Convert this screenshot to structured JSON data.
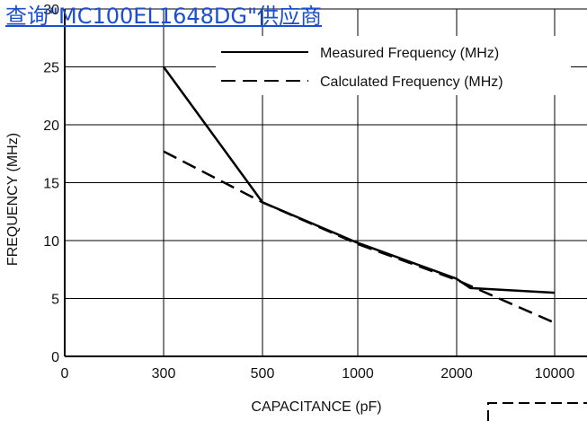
{
  "overlay": {
    "link_text": "查询\"MC100EL1648DG\"供应商"
  },
  "chart_data": {
    "type": "line",
    "title": "",
    "xlabel": "CAPACITANCE (pF)",
    "ylabel": "FREQUENCY (MHz)",
    "categories": [
      "0",
      "300",
      "500",
      "1000",
      "2000",
      "10000"
    ],
    "y_ticks": [
      "0",
      "5",
      "10",
      "15",
      "20",
      "25",
      "30"
    ],
    "ylim": [
      0,
      30
    ],
    "x_scale": "categorical (non-linear spacing as printed)",
    "grid": true,
    "legend_position": "top-right",
    "series": [
      {
        "name": "Measured Frequency (MHz)",
        "style": "solid",
        "color": "#000000",
        "points": [
          [
            300,
            25.0
          ],
          [
            500,
            13.3
          ],
          [
            1000,
            9.8
          ],
          [
            2000,
            6.7
          ],
          [
            2500,
            5.9
          ],
          [
            10000,
            5.5
          ]
        ]
      },
      {
        "name": "Calculated Frequency (MHz)",
        "style": "dashed",
        "color": "#000000",
        "points": [
          [
            300,
            17.7
          ],
          [
            500,
            13.3
          ],
          [
            1000,
            9.7
          ],
          [
            2000,
            6.6
          ],
          [
            10000,
            2.9
          ]
        ]
      }
    ]
  }
}
